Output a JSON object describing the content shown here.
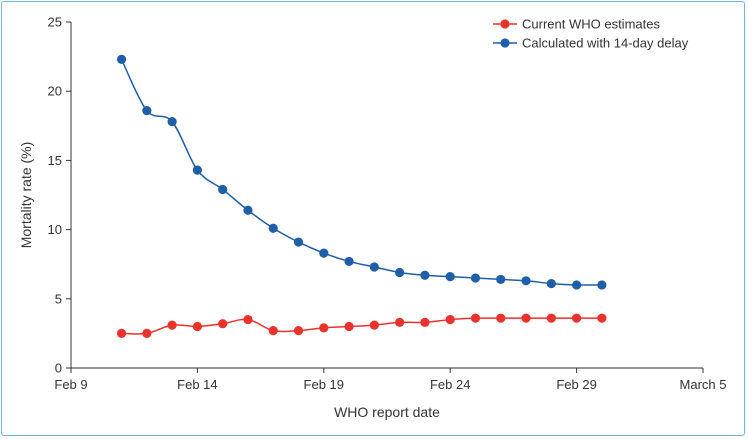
{
  "chart_data": {
    "type": "line",
    "xlabel": "WHO report date",
    "ylabel": "Mortality rate (%)",
    "ylim": [
      0,
      25
    ],
    "yticks": [
      0,
      5,
      10,
      15,
      20,
      25
    ],
    "xlim": [
      "2020-02-09",
      "2020-03-05"
    ],
    "xticks": [
      {
        "date": "2020-02-09",
        "label": "Feb 9"
      },
      {
        "date": "2020-02-14",
        "label": "Feb 14"
      },
      {
        "date": "2020-02-19",
        "label": "Feb 19"
      },
      {
        "date": "2020-02-24",
        "label": "Feb 24"
      },
      {
        "date": "2020-02-29",
        "label": "Feb 29"
      },
      {
        "date": "2020-03-05",
        "label": "March 5"
      }
    ],
    "legend_position": "top-right",
    "grid": false,
    "x": [
      "2020-02-11",
      "2020-02-12",
      "2020-02-13",
      "2020-02-14",
      "2020-02-15",
      "2020-02-16",
      "2020-02-17",
      "2020-02-18",
      "2020-02-19",
      "2020-02-20",
      "2020-02-21",
      "2020-02-22",
      "2020-02-23",
      "2020-02-24",
      "2020-02-25",
      "2020-02-26",
      "2020-02-27",
      "2020-02-28",
      "2020-02-29",
      "2020-03-01"
    ],
    "series": [
      {
        "name": "Current WHO estimates",
        "color": "#e8322b",
        "values": [
          2.5,
          2.5,
          3.1,
          3.0,
          3.2,
          3.5,
          2.7,
          2.7,
          2.9,
          3.0,
          3.1,
          3.3,
          3.3,
          3.5,
          3.6,
          3.6,
          3.6,
          3.6,
          3.6,
          3.6
        ]
      },
      {
        "name": "Calculated with 14-day delay",
        "color": "#1f5ea8",
        "values": [
          22.3,
          18.6,
          17.8,
          14.3,
          12.9,
          11.4,
          10.1,
          9.1,
          8.3,
          7.7,
          7.3,
          6.9,
          6.7,
          6.6,
          6.5,
          6.4,
          6.3,
          6.1,
          6.0,
          6.0
        ]
      }
    ]
  }
}
